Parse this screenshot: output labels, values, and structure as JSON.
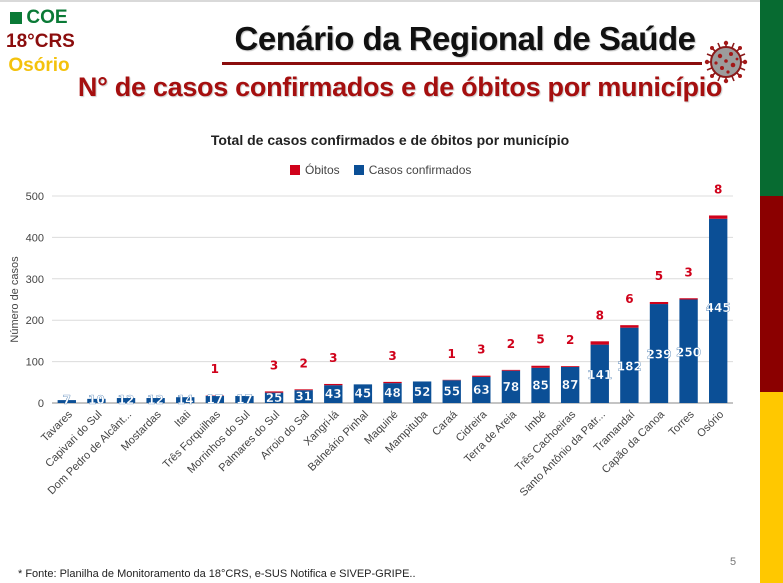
{
  "logo": {
    "line1": "COE",
    "line2": "18°CRS",
    "line3": "Osório"
  },
  "header": {
    "title": "Cenário da Regional de Saúde",
    "subtitle": "N° de casos confirmados e de óbitos por município",
    "icon": "virus-icon"
  },
  "colors": {
    "cases": "#0b4f96",
    "deaths": "#d0021b",
    "stripe_green": "#076b31",
    "stripe_red": "#8b0000",
    "stripe_yellow": "#ffc800"
  },
  "chart_data": {
    "type": "bar",
    "stacked": true,
    "title": "Total de casos confirmados e de óbitos por município",
    "xlabel": "",
    "ylabel": "Número de casos",
    "ylim": [
      0,
      500
    ],
    "yticks": [
      0,
      100,
      200,
      300,
      400,
      500
    ],
    "grid": true,
    "legend_position": "top-center",
    "legend": [
      "Óbitos",
      "Casos confirmados"
    ],
    "categories": [
      "Tavares",
      "Capivari do Sul",
      "Dom Pedro de Alcânt...",
      "Mostardas",
      "Itati",
      "Três Forquilhas",
      "Morrinhos do Sul",
      "Palmares do Sul",
      "Arroio do Sal",
      "Xangri-lá",
      "Balneário Pinhal",
      "Maquiné",
      "Mampituba",
      "Caraá",
      "Cidreira",
      "Terra de Areia",
      "Imbé",
      "Três Cachoeiras",
      "Santo Antônio da Patr...",
      "Tramandaí",
      "Capão da Canoa",
      "Torres",
      "Osório"
    ],
    "series": [
      {
        "name": "Casos confirmados",
        "values": [
          7,
          10,
          12,
          12,
          14,
          17,
          17,
          25,
          31,
          43,
          45,
          48,
          52,
          55,
          63,
          78,
          85,
          87,
          141,
          182,
          239,
          250,
          445
        ]
      },
      {
        "name": "Óbitos",
        "values": [
          0,
          0,
          0,
          0,
          0,
          1,
          0,
          3,
          2,
          3,
          0,
          3,
          0,
          1,
          3,
          2,
          5,
          2,
          8,
          6,
          5,
          3,
          8
        ]
      }
    ]
  },
  "footer": {
    "source": "* Fonte: Planilha de Monitoramento da 18°CRS, e-SUS Notifica e SIVEP-GRIPE..",
    "page_number": "5"
  }
}
